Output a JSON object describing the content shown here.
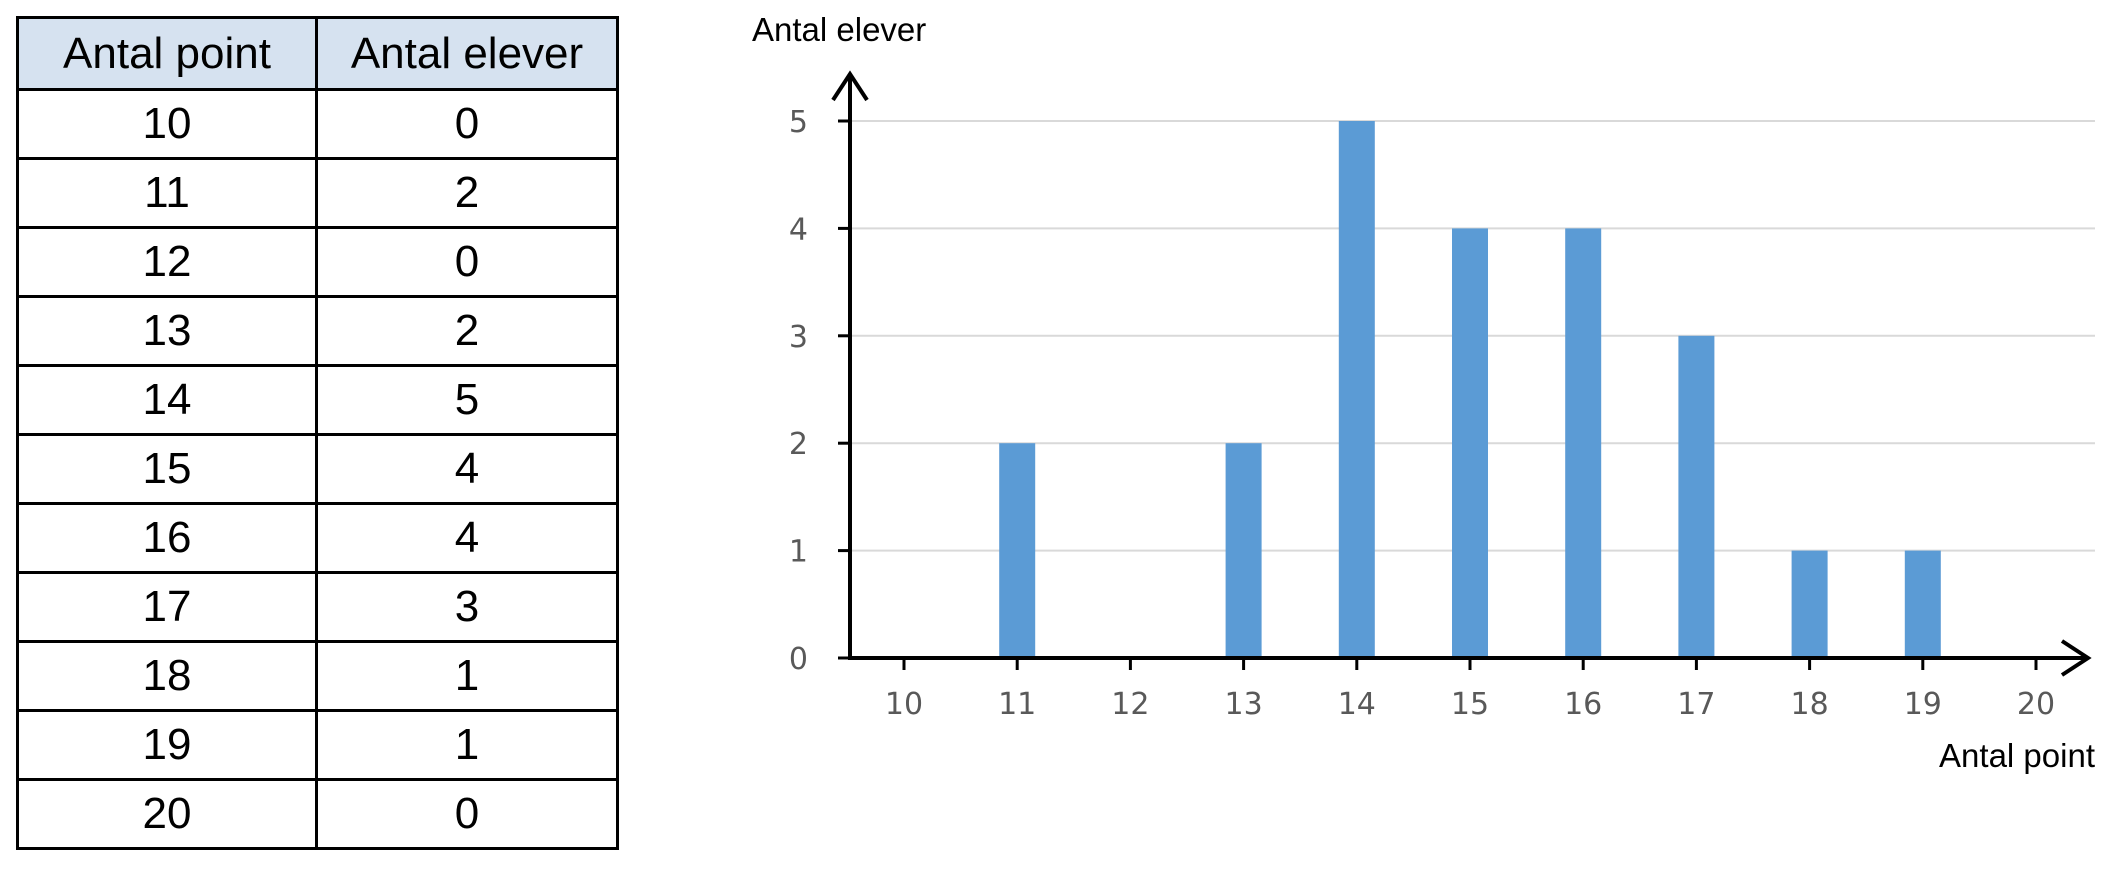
{
  "table": {
    "headers": [
      "Antal point",
      "Antal elever"
    ],
    "rows": [
      [
        "10",
        "0"
      ],
      [
        "11",
        "2"
      ],
      [
        "12",
        "0"
      ],
      [
        "13",
        "2"
      ],
      [
        "14",
        "5"
      ],
      [
        "15",
        "4"
      ],
      [
        "16",
        "4"
      ],
      [
        "17",
        "3"
      ],
      [
        "18",
        "1"
      ],
      [
        "19",
        "1"
      ],
      [
        "20",
        "0"
      ]
    ]
  },
  "chart_data": {
    "type": "bar",
    "categories": [
      "10",
      "11",
      "12",
      "13",
      "14",
      "15",
      "16",
      "17",
      "18",
      "19",
      "20"
    ],
    "values": [
      0,
      2,
      0,
      2,
      5,
      4,
      4,
      3,
      1,
      1,
      0
    ],
    "xlabel": "Antal point",
    "ylabel": "Antal elever",
    "ylim": [
      0,
      5
    ],
    "yticks": [
      0,
      1,
      2,
      3,
      4,
      5
    ],
    "grid": true,
    "bar_color": "#5b9bd5",
    "grid_color": "#d9d9d9"
  }
}
